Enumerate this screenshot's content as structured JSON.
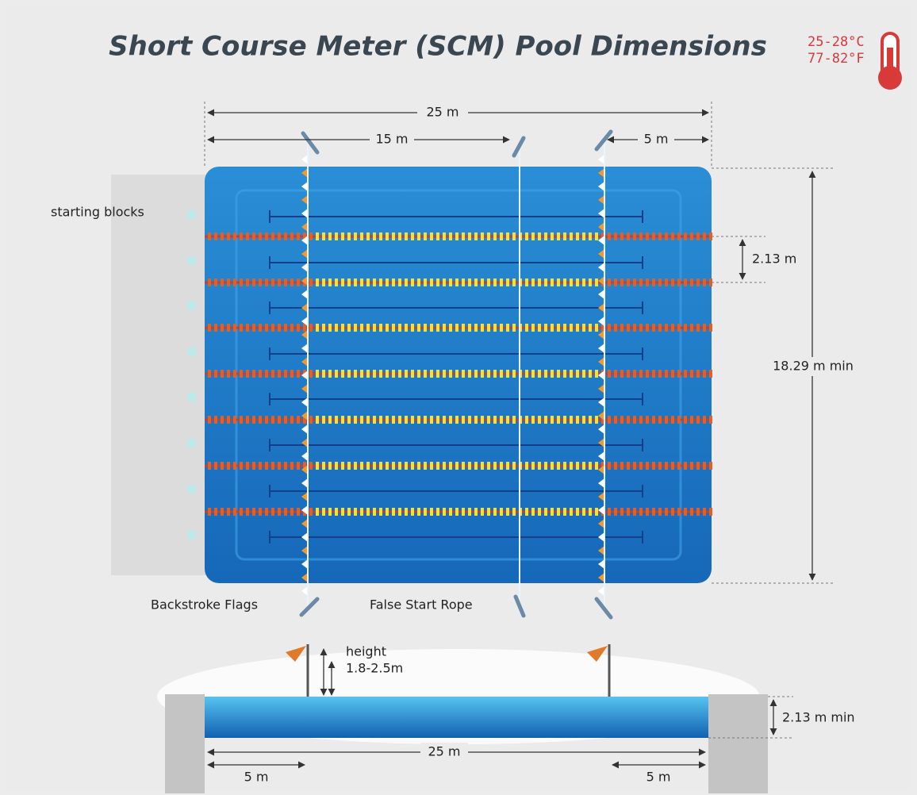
{
  "title": "Short Course Meter (SCM) Pool Dimensions",
  "temperature": [
    "25-28°C",
    "77-82°F"
  ],
  "top_view": {
    "length": "25 m",
    "false_start_distance": "15 m",
    "flag_distance": "5 m",
    "lane_width": "2.13 m",
    "pool_width": "18.29 m min",
    "labels": {
      "starting_blocks": "starting blocks",
      "backstroke_flags": "Backstroke Flags",
      "false_start_rope": "False Start Rope"
    }
  },
  "side_view": {
    "height_label": "height",
    "height_value": "1.8-2.5m",
    "depth": "2.13 m min",
    "length": "25 m",
    "flag_distances": [
      "5 m",
      "5 m"
    ]
  }
}
